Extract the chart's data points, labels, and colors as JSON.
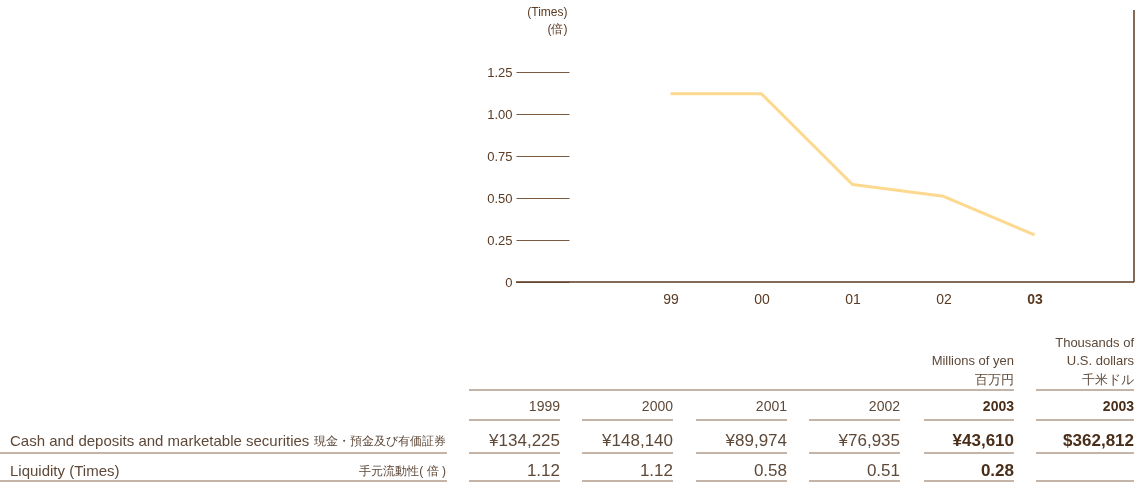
{
  "chart_data": {
    "type": "line",
    "ylabel": "(Times) (倍)",
    "categories": [
      "99",
      "00",
      "01",
      "02",
      "03"
    ],
    "series": [
      {
        "color": "#fdd990",
        "values": [
          1.12,
          1.12,
          0.58,
          0.51,
          0.28
        ]
      }
    ],
    "ylim": [
      0,
      1.25
    ],
    "yticks": [
      0,
      {
        "value": 0.25,
        "label": "0.25"
      },
      {
        "value": 0.5,
        "label": "0.50"
      },
      {
        "value": 0.75,
        "label": "0.75"
      },
      {
        "value": 1,
        "label": "1.00"
      },
      {
        "value": 1.25,
        "label": "1.25"
      }
    ],
    "grid": false,
    "annotations": [
      "Thousands of\nU.S. dollars",
      "Millions of yen",
      "百万円",
      "千米ドル",
      "1999",
      "2000",
      "2001",
      "2002",
      "2003",
      "2003",
      "Cash and deposits and marketable securities",
      "現金・預金及び有価証券",
      "¥134,225",
      "¥148,140",
      "¥89,974",
      "¥76,935",
      "¥43,610",
      "$362,812",
      "Liquidity (Times)",
      "手元流動性( 倍 )",
      "1.12",
      "1.12",
      "0.58",
      "0.51",
      "0.28"
    ]
  }
}
